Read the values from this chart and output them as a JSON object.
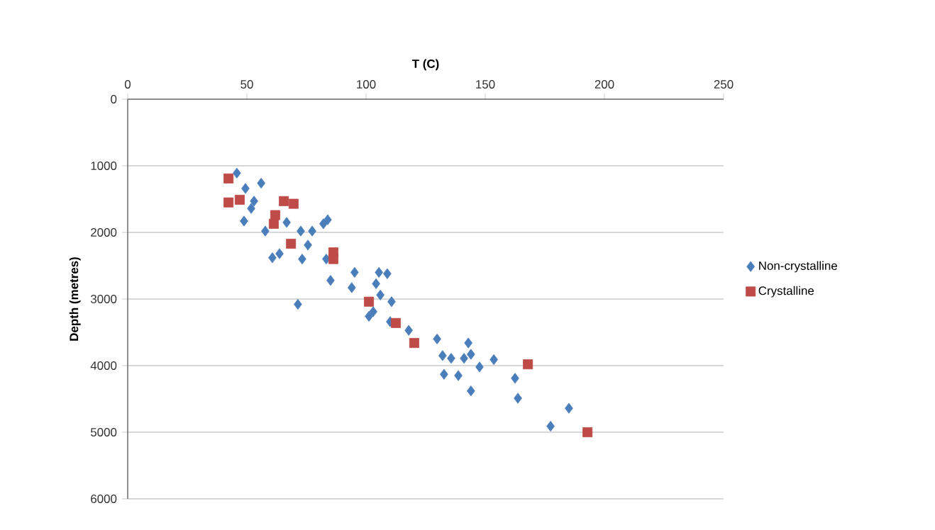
{
  "chart_data": {
    "type": "scatter",
    "xlabel": "T (C)",
    "ylabel": "Depth (metres)",
    "xlim": [
      0,
      250
    ],
    "xticks": [
      0,
      50,
      100,
      150,
      200,
      250
    ],
    "ylim": [
      6000,
      0
    ],
    "yticks": [
      0,
      1000,
      2000,
      3000,
      4000,
      5000,
      6000
    ],
    "grid": "y",
    "legend": "right",
    "series": [
      {
        "name": "Non-crystalline",
        "color": "#4a7ebb",
        "marker": "diamond",
        "x": [
          45.8,
          49.4,
          56.0,
          53.0,
          51.8,
          48.8,
          57.7,
          66.7,
          72.6,
          77.4,
          83.9,
          82.1,
          60.7,
          63.7,
          73.2,
          75.6,
          83.3,
          85.1,
          94.0,
          95.2,
          105.4,
          108.9,
          104.2,
          71.4,
          106.0,
          110.7,
          101.2,
          103.0,
          110.1,
          117.9,
          129.8,
          132.1,
          135.7,
          141.1,
          144.0,
          142.9,
          132.7,
          138.7,
          144.0,
          147.6,
          153.6,
          162.5,
          163.7,
          177.4,
          185.1
        ],
        "values": [
          1110,
          1340,
          1260,
          1530,
          1640,
          1830,
          1980,
          1850,
          1980,
          1980,
          1810,
          1870,
          2380,
          2320,
          2400,
          2190,
          2400,
          2720,
          2830,
          2600,
          2600,
          2620,
          2770,
          3080,
          2940,
          3040,
          3260,
          3190,
          3340,
          3470,
          3600,
          3850,
          3890,
          3890,
          3830,
          3660,
          4130,
          4150,
          4380,
          4020,
          3910,
          4190,
          4490,
          4910,
          4640
        ]
      },
      {
        "name": "Crystalline",
        "color": "#be4b48",
        "marker": "square",
        "x": [
          42.3,
          42.3,
          47.0,
          65.5,
          69.6,
          61.9,
          61.3,
          68.5,
          86.3,
          86.3,
          101.2,
          112.5,
          120.2,
          167.9,
          192.9
        ],
        "values": [
          1190,
          1550,
          1510,
          1530,
          1570,
          1740,
          1870,
          2170,
          2300,
          2400,
          3040,
          3360,
          3660,
          3980,
          5000
        ]
      }
    ]
  }
}
